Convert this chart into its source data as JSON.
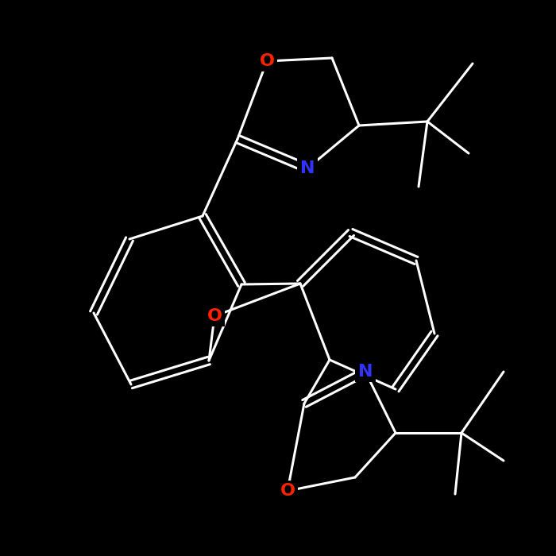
{
  "background_color": "#000000",
  "atom_colors": {
    "O": "#ff0000",
    "N": "#3333ff",
    "C": "#000000"
  },
  "bond_color": "#ffffff",
  "atom_label_color_O": "#ff2200",
  "atom_label_color_N": "#3333ff",
  "atom_label_color_C": "#ffffff",
  "figsize": [
    7.0,
    7.0
  ],
  "dpi": 100
}
